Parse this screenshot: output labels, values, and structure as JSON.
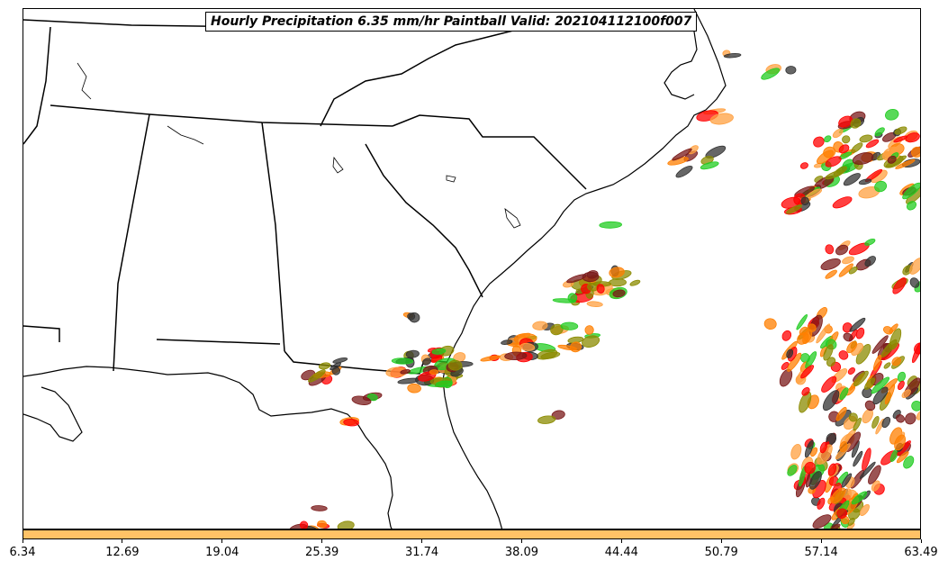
{
  "title": "Hourly Precipitation 6.35 mm/hr Paintball Valid: 202104112100f007",
  "colorbar": {
    "color": "#ffc266",
    "ticks": [
      "6.34",
      "12.69",
      "19.04",
      "25.39",
      "31.74",
      "38.09",
      "44.44",
      "50.79",
      "57.14",
      "63.49"
    ]
  },
  "member_colors": [
    "#ff0000",
    "#ff7f00",
    "#22cc22",
    "#8b8b00",
    "#333333",
    "#7a1a1a",
    "#ffa040"
  ]
}
